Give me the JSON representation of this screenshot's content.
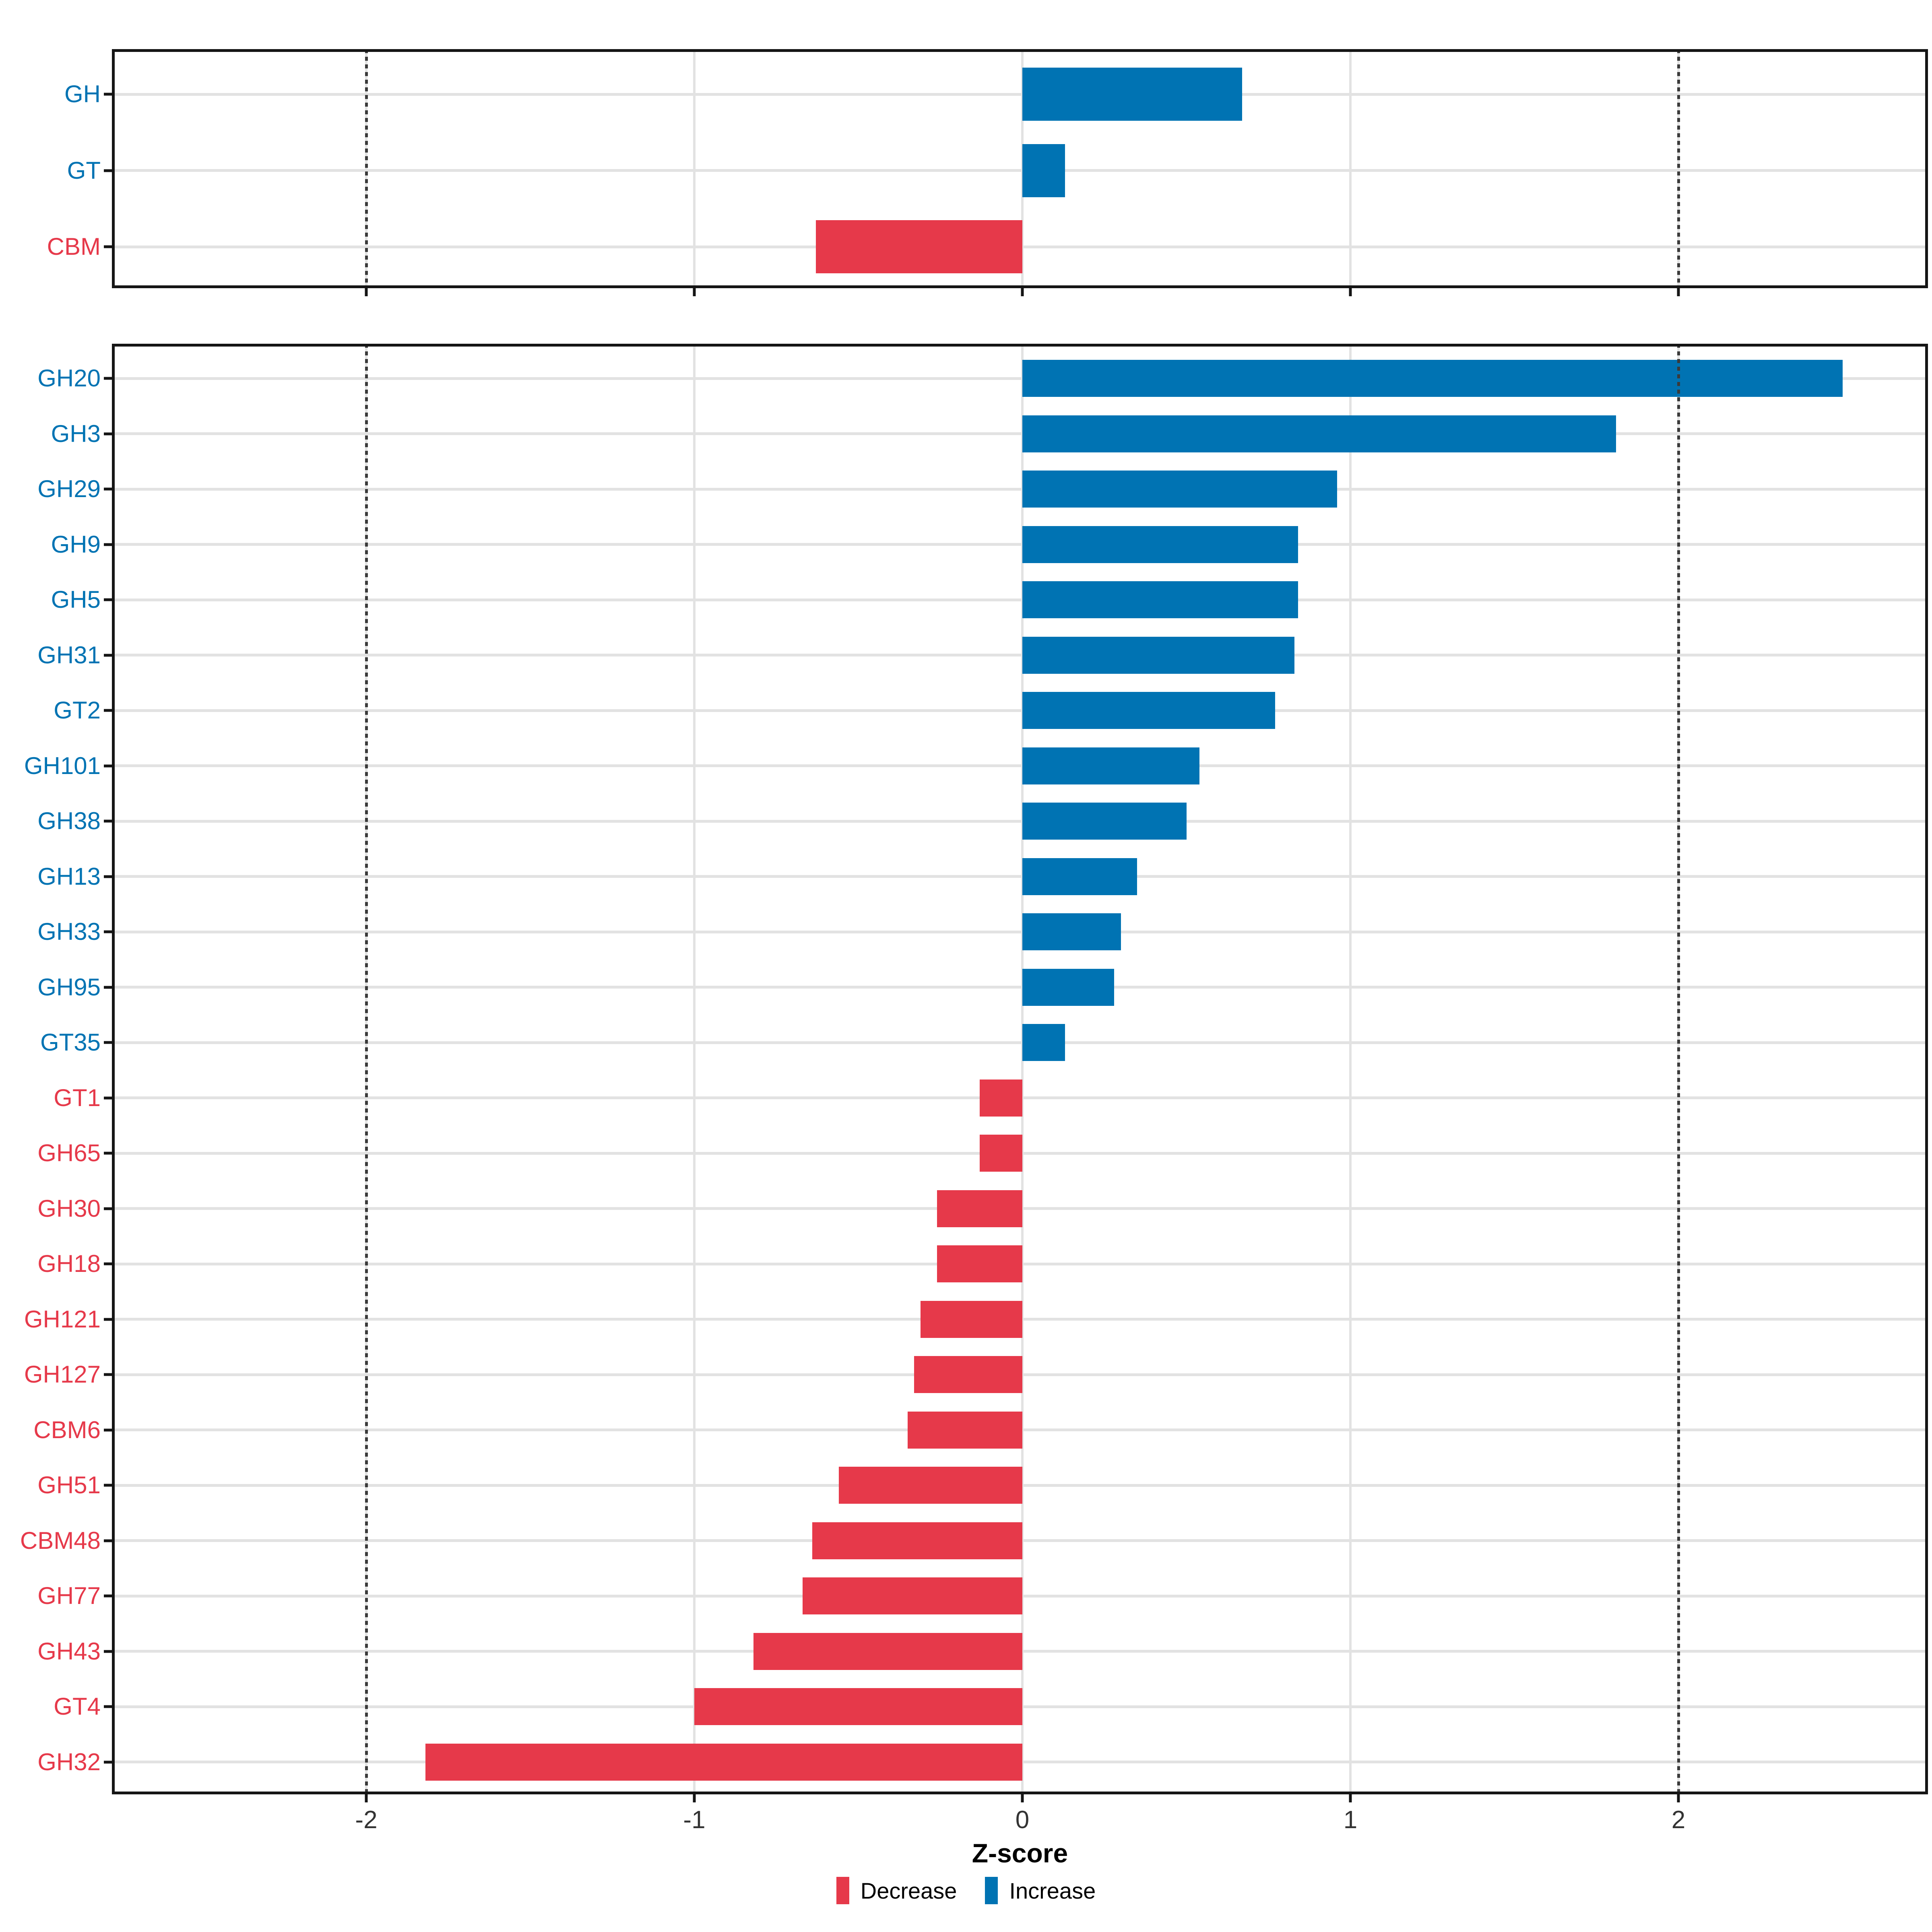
{
  "chart_data": [
    {
      "id": "class_panel",
      "type": "bar",
      "orientation": "horizontal",
      "title": "",
      "categories": [
        "GH",
        "GT",
        "CBM"
      ],
      "values": [
        0.67,
        0.13,
        -0.63
      ],
      "directions": [
        "Increase",
        "Increase",
        "Decrease"
      ],
      "xlim": [
        -2.78,
        2.76
      ],
      "x_breaks": [
        -2,
        -1,
        0,
        1,
        2
      ],
      "threshold_lines": [
        -2,
        2
      ],
      "grid": "major",
      "legend_position": "none"
    },
    {
      "id": "family_panel",
      "type": "bar",
      "orientation": "horizontal",
      "title": "",
      "categories": [
        "GH20",
        "GH3",
        "GH29",
        "GH9",
        "GH5",
        "GH31",
        "GT2",
        "GH101",
        "GH38",
        "GH13",
        "GH33",
        "GH95",
        "GT35",
        "GT1",
        "GH65",
        "GH30",
        "GH18",
        "GH121",
        "GH127",
        "CBM6",
        "GH51",
        "CBM48",
        "GH77",
        "GH43",
        "GT4",
        "GH32"
      ],
      "values": [
        2.5,
        1.81,
        0.96,
        0.84,
        0.84,
        0.83,
        0.77,
        0.54,
        0.5,
        0.35,
        0.3,
        0.28,
        0.13,
        -0.13,
        -0.13,
        -0.26,
        -0.26,
        -0.31,
        -0.33,
        -0.35,
        -0.56,
        -0.64,
        -0.67,
        -0.82,
        -1.0,
        -1.82
      ],
      "directions": [
        "Increase",
        "Increase",
        "Increase",
        "Increase",
        "Increase",
        "Increase",
        "Increase",
        "Increase",
        "Increase",
        "Increase",
        "Increase",
        "Increase",
        "Increase",
        "Decrease",
        "Decrease",
        "Decrease",
        "Decrease",
        "Decrease",
        "Decrease",
        "Decrease",
        "Decrease",
        "Decrease",
        "Decrease",
        "Decrease",
        "Decrease",
        "Decrease"
      ],
      "xlim": [
        -2.78,
        2.76
      ],
      "x_breaks": [
        -2,
        -1,
        0,
        1,
        2
      ],
      "threshold_lines": [
        -2,
        2
      ],
      "grid": "major",
      "legend_position": "bottom"
    }
  ],
  "axis": {
    "xlabel": "Z-score",
    "x_tick_labels": [
      "-2",
      "-1",
      "0",
      "1",
      "2"
    ]
  },
  "legend": {
    "items": [
      {
        "label": "Decrease",
        "color": "#E6394A"
      },
      {
        "label": "Increase",
        "color": "#0073B3"
      }
    ],
    "position": "bottom"
  },
  "colors": {
    "increase": "#0073B3",
    "decrease": "#E6394A",
    "gridline": "#E2E2E2",
    "threshold_line": "#3A3A3A",
    "axis_text": "#333333",
    "panel_border": "#151515",
    "tick": "#151515",
    "background": "#FFFFFF"
  }
}
